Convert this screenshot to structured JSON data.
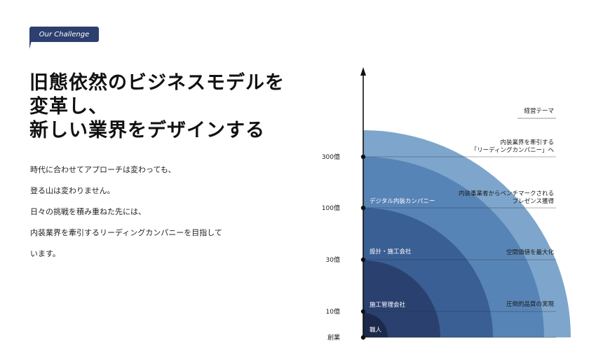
{
  "badge": {
    "label": "Our Challenge"
  },
  "headline": {
    "lines": [
      "旧態依然のビジネスモデルを",
      "変革し、",
      "新しい業界をデザインする"
    ]
  },
  "body": {
    "lines": [
      "時代に合わせてアプローチは変わっても、",
      "登る山は変わりません。",
      "日々の挑戦を積み重ねた先には、",
      "内装業界を牽引するリーディングカンパニーを目指して",
      "います。"
    ]
  },
  "diagram": {
    "theme_header": "経営テーマ",
    "axis_levels": [
      {
        "label": "創業"
      },
      {
        "label": "10億"
      },
      {
        "label": "30億"
      },
      {
        "label": "100億"
      },
      {
        "label": "300億"
      }
    ],
    "stages": [
      {
        "label": "職人",
        "color": "#1b2a4a"
      },
      {
        "label": "施工管理会社",
        "color": "#2a4170"
      },
      {
        "label": "設計・施工会社",
        "color": "#3a5f95"
      },
      {
        "label": "デジタル内装カンパニー",
        "color": "#5784b6"
      },
      {
        "label": "",
        "color": "#7ea6cc"
      }
    ],
    "themes": [
      {
        "lines": [
          "圧倒的品質の実現"
        ]
      },
      {
        "lines": [
          "空間価値を最大化"
        ]
      },
      {
        "lines": [
          "内装事業者からベンチマークされる",
          "プレゼンス獲得"
        ]
      },
      {
        "lines": [
          "内装業界を牽引する",
          "「リーディングカンパニー」へ"
        ]
      }
    ]
  }
}
